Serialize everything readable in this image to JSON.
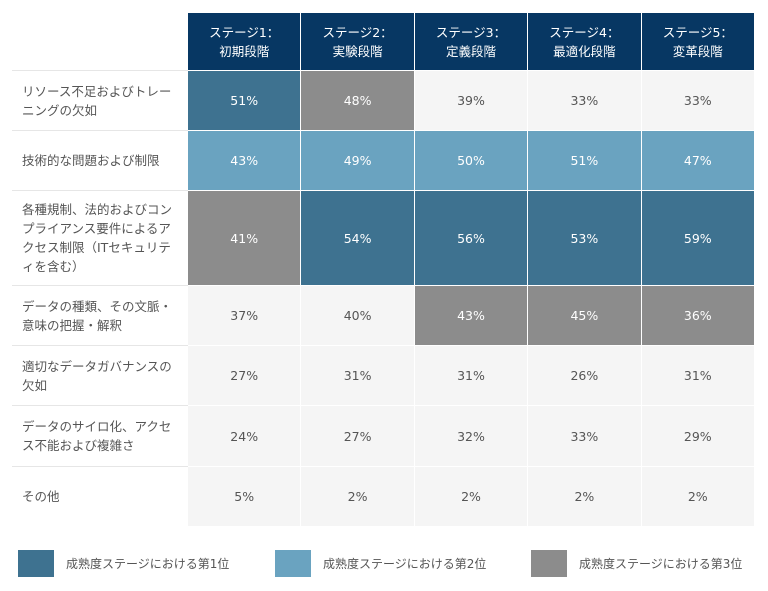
{
  "chart_data": {
    "type": "heatmap",
    "title": "",
    "columns": [
      [
        "ステージ1：",
        "初期段階"
      ],
      [
        "ステージ2：",
        "実験段階"
      ],
      [
        "ステージ3：",
        "定義段階"
      ],
      [
        "ステージ4：",
        "最適化段階"
      ],
      [
        "ステージ5：",
        "変革段階"
      ]
    ],
    "rows": [
      {
        "label": "リソース不足およびトレーニングの欠如",
        "values": [
          51,
          48,
          39,
          33,
          33
        ],
        "ranks": [
          1,
          3,
          0,
          0,
          0
        ]
      },
      {
        "label": "技術的な問題および制限",
        "values": [
          43,
          49,
          50,
          51,
          47
        ],
        "ranks": [
          2,
          2,
          2,
          2,
          2
        ]
      },
      {
        "label": "各種規制、法的およびコンプライアンス要件によるアクセス制限（ITセキュリティを含む）",
        "values": [
          41,
          54,
          56,
          53,
          59
        ],
        "ranks": [
          3,
          1,
          1,
          1,
          1
        ]
      },
      {
        "label": "データの種類、その文脈・意味の把握・解釈",
        "values": [
          37,
          40,
          43,
          45,
          36
        ],
        "ranks": [
          0,
          0,
          3,
          3,
          3
        ]
      },
      {
        "label": "適切なデータガバナンスの欠如",
        "values": [
          27,
          31,
          31,
          26,
          31
        ],
        "ranks": [
          0,
          0,
          0,
          0,
          0
        ]
      },
      {
        "label": "データのサイロ化、アクセス不能および複雑さ",
        "values": [
          24,
          27,
          32,
          33,
          29
        ],
        "ranks": [
          0,
          0,
          0,
          0,
          0
        ]
      },
      {
        "label": "その他",
        "values": [
          5,
          2,
          2,
          2,
          2
        ],
        "ranks": [
          0,
          0,
          0,
          0,
          0
        ]
      }
    ],
    "unit": "%",
    "legend": [
      {
        "rank": 1,
        "label": "成熟度ステージにおける第1位",
        "color": "#3e7290"
      },
      {
        "rank": 2,
        "label": "成熟度ステージにおける第2位",
        "color": "#6aa3c0"
      },
      {
        "rank": 3,
        "label": "成熟度ステージにおける第3位",
        "color": "#8c8c8c"
      }
    ],
    "legend_position": "bottom"
  },
  "colors": {
    "header_bg": "#073763",
    "header_text": "#ffffff",
    "default_cell_bg": "#f5f5f5",
    "default_cell_text": "#555555",
    "highlight_text": "#ffffff"
  }
}
